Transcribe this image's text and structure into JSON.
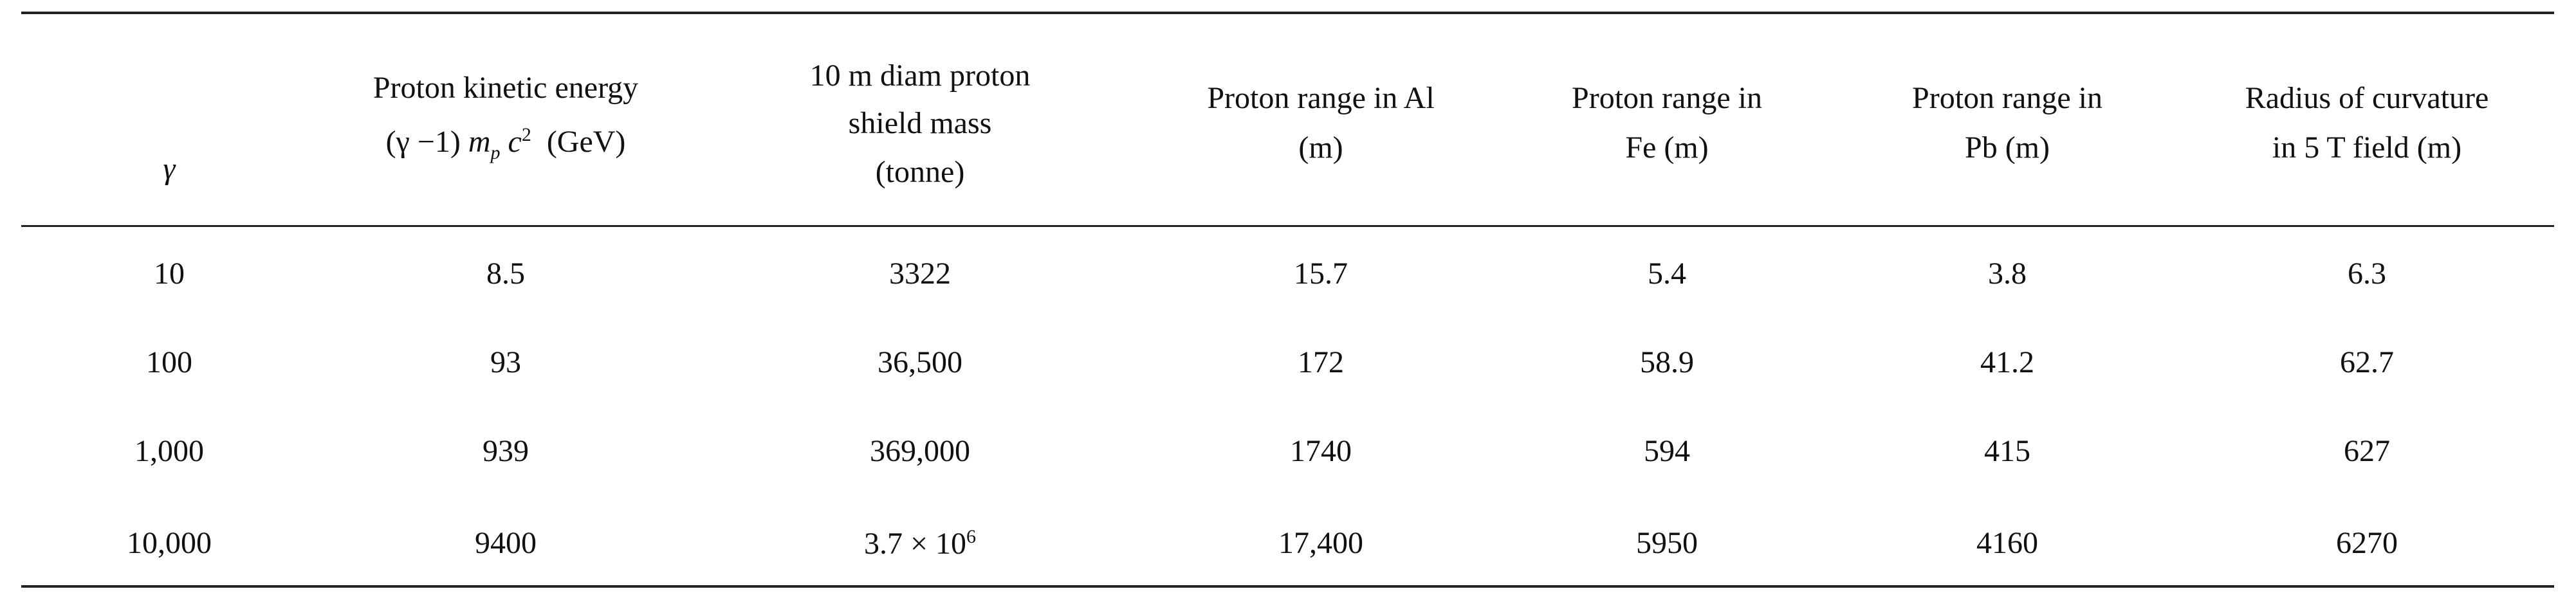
{
  "table": {
    "headers": [
      {
        "lines": [
          "γ"
        ]
      },
      {
        "lines": [
          "Proton kinetic energy"
        ],
        "formula": [
          "(γ −1)",
          "m",
          "p",
          "c",
          "2",
          "(GeV)"
        ]
      },
      {
        "lines": [
          "10 m diam proton",
          "shield mass",
          "(tonne)"
        ]
      },
      {
        "lines": [
          "Proton range in Al",
          "(m)"
        ]
      },
      {
        "lines": [
          "Proton range in",
          "Fe (m)"
        ]
      },
      {
        "lines": [
          "Proton range in",
          "Pb (m)"
        ]
      },
      {
        "lines": [
          "Radius of curvature",
          "in 5 T field (m)"
        ]
      }
    ],
    "rows": [
      [
        "10",
        "8.5",
        "3322",
        "15.7",
        "5.4",
        "3.8",
        "6.3"
      ],
      [
        "100",
        "93",
        "36,500",
        "172",
        "58.9",
        "41.2",
        "62.7"
      ],
      [
        "1,000",
        "939",
        "369,000",
        "1740",
        "594",
        "415",
        "627"
      ],
      [
        "10,000",
        "9400",
        {
          "base": "3.7 × 10",
          "sup": "6"
        },
        "17,400",
        "5950",
        "4160",
        "6270"
      ]
    ]
  }
}
